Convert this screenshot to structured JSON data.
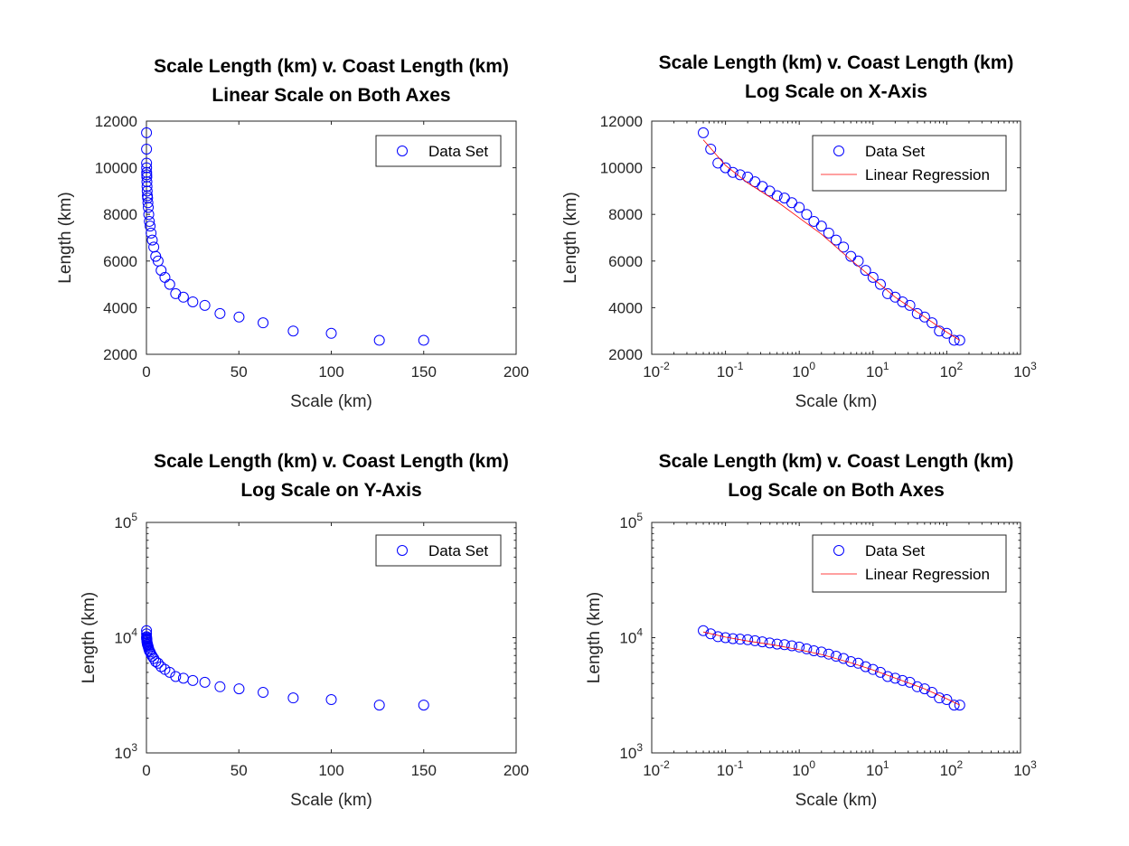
{
  "chart_data": [
    {
      "type": "scatter",
      "title": [
        "Scale Length (km) v. Coast Length (km)",
        "Linear Scale on Both Axes"
      ],
      "xlabel": "Scale (km)",
      "ylabel": "Length (km)",
      "xscale": "linear",
      "yscale": "linear",
      "xlim": [
        0,
        200
      ],
      "ylim": [
        2000,
        12000
      ],
      "xticks": [
        "0",
        "50",
        "100",
        "150",
        "200"
      ],
      "yticks": [
        "2000",
        "4000",
        "6000",
        "8000",
        "10000",
        "12000"
      ],
      "grid": false,
      "legend": {
        "position": "top-right",
        "entries": [
          "Data Set"
        ]
      },
      "series": [
        {
          "name": "Data Set",
          "marker": "circle",
          "color": "#0000ff",
          "data": "shared"
        }
      ]
    },
    {
      "type": "scatter",
      "title": [
        "Scale Length (km) v. Coast Length (km)",
        "Log Scale on X-Axis"
      ],
      "xlabel": "Scale (km)",
      "ylabel": "Length (km)",
      "xscale": "log",
      "yscale": "linear",
      "xlim": [
        0.01,
        1000
      ],
      "ylim": [
        2000,
        12000
      ],
      "xticks": [
        {
          "base": "10",
          "exp": "-2"
        },
        {
          "base": "10",
          "exp": "-1"
        },
        {
          "base": "10",
          "exp": "0"
        },
        {
          "base": "10",
          "exp": "1"
        },
        {
          "base": "10",
          "exp": "2"
        },
        {
          "base": "10",
          "exp": "3"
        }
      ],
      "yticks": [
        "2000",
        "4000",
        "6000",
        "8000",
        "10000",
        "12000"
      ],
      "grid": false,
      "legend": {
        "position": "top-right",
        "entries": [
          "Data Set",
          "Linear Regression"
        ]
      },
      "series": [
        {
          "name": "Data Set",
          "marker": "circle",
          "color": "#0000ff",
          "data": "shared"
        },
        {
          "name": "Linear Regression",
          "line": true,
          "color": "#ff0000",
          "data": "fit"
        }
      ]
    },
    {
      "type": "scatter",
      "title": [
        "Scale Length (km) v. Coast Length (km)",
        "Log Scale on Y-Axis"
      ],
      "xlabel": "Scale (km)",
      "ylabel": "Length (km)",
      "xscale": "linear",
      "yscale": "log",
      "xlim": [
        0,
        200
      ],
      "ylim": [
        1000,
        100000
      ],
      "xticks": [
        "0",
        "50",
        "100",
        "150",
        "200"
      ],
      "yticks": [
        {
          "base": "10",
          "exp": "3"
        },
        {
          "base": "10",
          "exp": "4"
        },
        {
          "base": "10",
          "exp": "5"
        }
      ],
      "grid": false,
      "legend": {
        "position": "top-right",
        "entries": [
          "Data Set"
        ]
      },
      "series": [
        {
          "name": "Data Set",
          "marker": "circle",
          "color": "#0000ff",
          "data": "shared"
        }
      ]
    },
    {
      "type": "scatter",
      "title": [
        "Scale Length (km) v. Coast Length (km)",
        "Log Scale on Both Axes"
      ],
      "xlabel": "Scale (km)",
      "ylabel": "Length (km)",
      "xscale": "log",
      "yscale": "log",
      "xlim": [
        0.01,
        1000
      ],
      "ylim": [
        1000,
        100000
      ],
      "xticks": [
        {
          "base": "10",
          "exp": "-2"
        },
        {
          "base": "10",
          "exp": "-1"
        },
        {
          "base": "10",
          "exp": "0"
        },
        {
          "base": "10",
          "exp": "1"
        },
        {
          "base": "10",
          "exp": "2"
        },
        {
          "base": "10",
          "exp": "3"
        }
      ],
      "yticks": [
        {
          "base": "10",
          "exp": "3"
        },
        {
          "base": "10",
          "exp": "4"
        },
        {
          "base": "10",
          "exp": "5"
        }
      ],
      "grid": false,
      "legend": {
        "position": "top-right",
        "entries": [
          "Data Set",
          "Linear Regression"
        ]
      },
      "series": [
        {
          "name": "Data Set",
          "marker": "circle",
          "color": "#0000ff",
          "data": "shared"
        },
        {
          "name": "Linear Regression",
          "line": true,
          "color": "#ff0000",
          "data": "fit"
        }
      ]
    }
  ],
  "shared": {
    "x": [
      0.05,
      0.063,
      0.079,
      0.1,
      0.126,
      0.158,
      0.2,
      0.251,
      0.316,
      0.398,
      0.501,
      0.631,
      0.794,
      1.0,
      1.26,
      1.58,
      2.0,
      2.51,
      3.16,
      3.98,
      5.01,
      6.31,
      7.94,
      10.0,
      12.6,
      15.8,
      20.0,
      25.1,
      31.6,
      39.8,
      50.1,
      63.1,
      79.4,
      100,
      126,
      150
    ],
    "y": [
      11500,
      10800,
      10200,
      10000,
      9800,
      9700,
      9600,
      9400,
      9200,
      9000,
      8800,
      8700,
      8500,
      8300,
      8000,
      7700,
      7500,
      7200,
      6900,
      6600,
      6200,
      6000,
      5600,
      5300,
      5000,
      4600,
      4450,
      4250,
      4100,
      3750,
      3600,
      3350,
      3000,
      2900,
      2600,
      2600
    ]
  },
  "fit": {
    "x": [
      0.05,
      0.1,
      0.2,
      0.5,
      1,
      2,
      5,
      10,
      20,
      50,
      100,
      150
    ],
    "y": [
      11200,
      10100,
      9350,
      8550,
      7850,
      7150,
      6050,
      5250,
      4450,
      3600,
      2950,
      2600
    ]
  },
  "colors": {
    "marker": "#0000ff",
    "fit": "#ff0000",
    "axes": "#262626"
  }
}
